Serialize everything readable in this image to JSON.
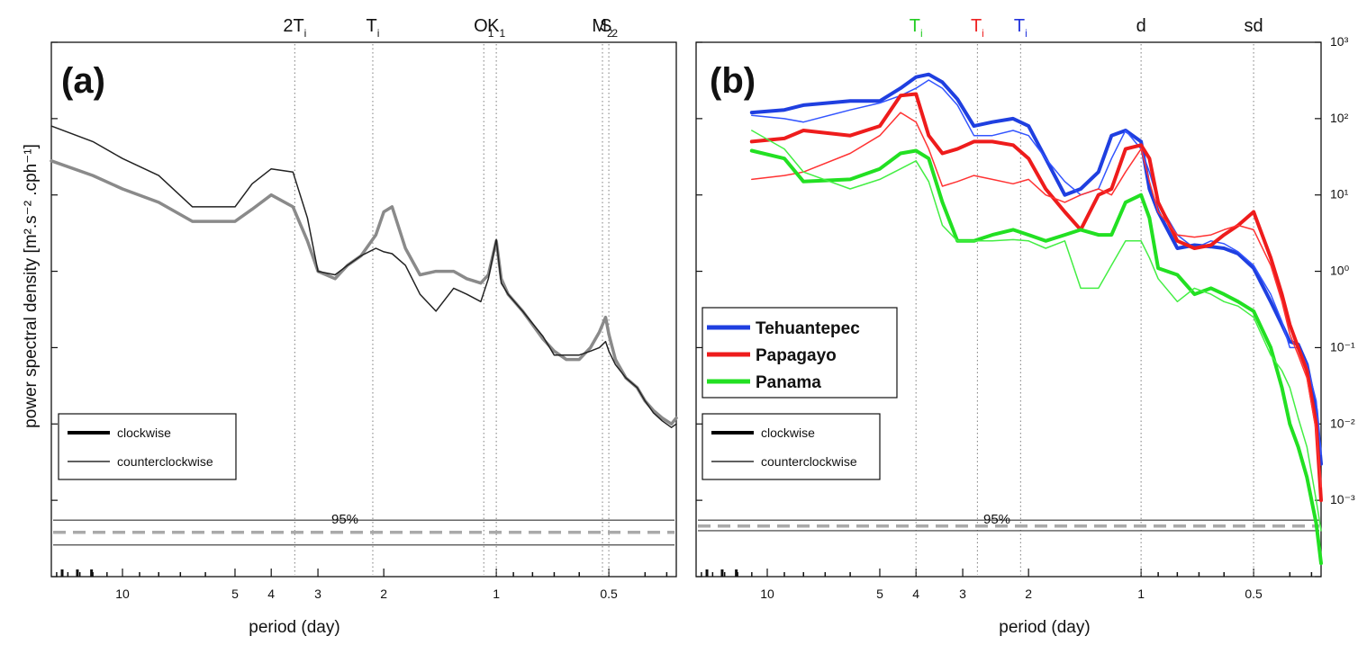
{
  "chart_data": [
    {
      "panel": "(a)",
      "type": "line",
      "xscale": "log",
      "yscale": "log",
      "xlim": [
        15.5,
        0.33
      ],
      "ylim": [
        0.0001,
        1000
      ],
      "xlabel": "period (day)",
      "ylabel": "power spectral density [m².s⁻² .cph⁻¹]",
      "x_ticks": [
        10,
        5,
        4,
        3,
        2,
        1,
        0.5
      ],
      "x_ticklabels": [
        "10",
        "5",
        "4",
        "3",
        "2",
        "1",
        "0.5"
      ],
      "top_markers": [
        {
          "label": "2T",
          "sub": "i",
          "period": 3.46
        },
        {
          "label": "T",
          "sub": "i",
          "period": 2.14
        },
        {
          "label": "O",
          "sub": "1",
          "period": 1.08
        },
        {
          "label": "K",
          "sub": "1",
          "period": 1.0
        },
        {
          "label": "M",
          "sub": "2",
          "period": 0.52
        },
        {
          "label": "S",
          "sub": "2",
          "period": 0.5
        }
      ],
      "series": [
        {
          "role": "clockwise",
          "color": "#8a8a8a",
          "width": 3.5,
          "x": [
            15.5,
            12,
            10,
            8,
            6.5,
            5,
            4.5,
            4,
            3.5,
            3.2,
            3.0,
            2.7,
            2.5,
            2.3,
            2.1,
            2.0,
            1.9,
            1.75,
            1.6,
            1.45,
            1.3,
            1.2,
            1.1,
            1.05,
            1.0,
            0.97,
            0.93,
            0.85,
            0.75,
            0.7,
            0.65,
            0.6,
            0.56,
            0.53,
            0.51,
            0.5,
            0.48,
            0.45,
            0.42,
            0.4,
            0.38,
            0.36,
            0.34,
            0.33
          ],
          "y": [
            28,
            18,
            12,
            8,
            4.5,
            4.5,
            6.5,
            10,
            7,
            2.5,
            1.0,
            0.8,
            1.2,
            1.6,
            3,
            6,
            7,
            2,
            0.9,
            1.0,
            1.0,
            0.8,
            0.7,
            0.9,
            2.5,
            0.8,
            0.5,
            0.3,
            0.13,
            0.09,
            0.07,
            0.07,
            0.1,
            0.16,
            0.25,
            0.15,
            0.07,
            0.04,
            0.03,
            0.02,
            0.015,
            0.012,
            0.01,
            0.012
          ]
        },
        {
          "role": "counterclockwise",
          "color": "#222222",
          "width": 1.5,
          "x": [
            15.5,
            12,
            10,
            8,
            6.5,
            5,
            4.5,
            4,
            3.5,
            3.2,
            3.0,
            2.7,
            2.5,
            2.3,
            2.1,
            2.0,
            1.9,
            1.75,
            1.6,
            1.45,
            1.3,
            1.2,
            1.1,
            1.05,
            1.0,
            0.97,
            0.93,
            0.85,
            0.75,
            0.7,
            0.65,
            0.6,
            0.56,
            0.53,
            0.51,
            0.5,
            0.48,
            0.45,
            0.42,
            0.4,
            0.38,
            0.36,
            0.34,
            0.33
          ],
          "y": [
            80,
            50,
            30,
            18,
            7,
            7,
            14,
            22,
            20,
            5,
            1.0,
            0.9,
            1.2,
            1.6,
            2.0,
            1.8,
            1.7,
            1.2,
            0.5,
            0.3,
            0.6,
            0.5,
            0.4,
            0.8,
            2.6,
            0.7,
            0.5,
            0.3,
            0.14,
            0.08,
            0.08,
            0.08,
            0.09,
            0.1,
            0.12,
            0.09,
            0.06,
            0.04,
            0.03,
            0.02,
            0.014,
            0.011,
            0.009,
            0.01
          ]
        }
      ],
      "confidence": {
        "label": "95%",
        "upper": 0.00055,
        "lower": 0.00026,
        "centre": 0.00038
      },
      "legend": {
        "position": "lower-left",
        "entries": [
          {
            "label": "clockwise",
            "width": 4
          },
          {
            "label": "counterclockwise",
            "width": 1.2
          }
        ]
      },
      "color": "#222222"
    },
    {
      "panel": "(b)",
      "type": "line",
      "xscale": "log",
      "yscale": "log",
      "xlim": [
        15.5,
        0.33
      ],
      "ylim": [
        0.0001,
        1000
      ],
      "xlabel": "period (day)",
      "x_ticks": [
        10,
        5,
        4,
        3,
        2,
        1,
        0.5
      ],
      "x_ticklabels": [
        "10",
        "5",
        "4",
        "3",
        "2",
        "1",
        "0.5"
      ],
      "y_ticks": [
        "10^3",
        "10^2",
        "10^1",
        "10^0",
        "10^-1",
        "10^-2",
        "10^-3"
      ],
      "top_markers": [
        {
          "label": "T",
          "sub": "i",
          "period": 4.0,
          "color": "#22cc22"
        },
        {
          "label": "T",
          "sub": "i",
          "period": 2.74,
          "color": "#ee2222"
        },
        {
          "label": "T",
          "sub": "i",
          "period": 2.1,
          "color": "#2233dd"
        },
        {
          "label": "d",
          "sub": "",
          "period": 1.0,
          "color": "#111111"
        },
        {
          "label": "sd",
          "sub": "",
          "period": 0.5,
          "color": "#111111"
        }
      ],
      "series": [
        {
          "name": "Tehuantepec",
          "role": "clockwise",
          "color": "#1f3fe0",
          "width": 4,
          "x": [
            11,
            9,
            8,
            6,
            5,
            4.4,
            4,
            3.7,
            3.4,
            3.1,
            2.8,
            2.5,
            2.2,
            2.0,
            1.8,
            1.6,
            1.45,
            1.3,
            1.2,
            1.1,
            1.0,
            0.95,
            0.9,
            0.8,
            0.72,
            0.65,
            0.6,
            0.55,
            0.5,
            0.45,
            0.42,
            0.4,
            0.38,
            0.36,
            0.34,
            0.33
          ],
          "y": [
            120,
            130,
            150,
            170,
            170,
            250,
            350,
            380,
            300,
            180,
            80,
            90,
            100,
            80,
            30,
            10,
            12,
            20,
            60,
            70,
            50,
            12,
            6,
            2.0,
            2.2,
            2.1,
            2.0,
            1.7,
            1.1,
            0.4,
            0.2,
            0.12,
            0.11,
            0.06,
            0.015,
            0.003
          ]
        },
        {
          "name": "Tehuantepec",
          "role": "counterclockwise",
          "color": "#3355ff",
          "width": 1.5,
          "x": [
            11,
            9,
            8,
            6,
            5,
            4.4,
            4,
            3.7,
            3.4,
            3.1,
            2.8,
            2.5,
            2.2,
            2.0,
            1.8,
            1.6,
            1.45,
            1.3,
            1.2,
            1.1,
            1.0,
            0.95,
            0.9,
            0.8,
            0.72,
            0.65,
            0.6,
            0.55,
            0.5,
            0.45,
            0.42,
            0.4,
            0.38,
            0.36,
            0.34,
            0.33
          ],
          "y": [
            110,
            100,
            90,
            130,
            160,
            200,
            250,
            320,
            250,
            150,
            60,
            60,
            70,
            60,
            30,
            15,
            10,
            12,
            30,
            70,
            40,
            20,
            8,
            3,
            2,
            2.5,
            2.3,
            1.8,
            1.2,
            0.5,
            0.22,
            0.1,
            0.1,
            0.06,
            0.02,
            0.004
          ]
        },
        {
          "name": "Papagayo",
          "role": "clockwise",
          "color": "#ee1c1c",
          "width": 4,
          "x": [
            11,
            9,
            8,
            6,
            5,
            4.4,
            4,
            3.7,
            3.4,
            3.1,
            2.8,
            2.5,
            2.2,
            2.0,
            1.8,
            1.6,
            1.45,
            1.3,
            1.2,
            1.1,
            1.0,
            0.95,
            0.9,
            0.8,
            0.72,
            0.65,
            0.6,
            0.55,
            0.5,
            0.45,
            0.42,
            0.4,
            0.38,
            0.36,
            0.34,
            0.33
          ],
          "y": [
            50,
            55,
            70,
            60,
            80,
            200,
            210,
            60,
            35,
            40,
            50,
            50,
            45,
            30,
            12,
            6,
            3.5,
            10,
            12,
            40,
            45,
            30,
            8,
            2.5,
            2,
            2.2,
            3,
            4,
            6,
            1.5,
            0.5,
            0.2,
            0.1,
            0.05,
            0.01,
            0.001
          ]
        },
        {
          "name": "Papagayo",
          "role": "counterclockwise",
          "color": "#ff3333",
          "width": 1.5,
          "x": [
            11,
            9,
            8,
            6,
            5,
            4.4,
            4,
            3.7,
            3.4,
            3.1,
            2.8,
            2.5,
            2.2,
            2.0,
            1.8,
            1.6,
            1.45,
            1.3,
            1.2,
            1.1,
            1.0,
            0.95,
            0.9,
            0.8,
            0.72,
            0.65,
            0.6,
            0.55,
            0.5,
            0.45,
            0.42,
            0.4,
            0.38,
            0.36,
            0.34,
            0.33
          ],
          "y": [
            16,
            18,
            20,
            35,
            60,
            120,
            90,
            40,
            13,
            15,
            18,
            16,
            14,
            16,
            10,
            8,
            10,
            12,
            10,
            20,
            40,
            15,
            6,
            3,
            2.8,
            3,
            3.5,
            4,
            3.5,
            1.2,
            0.4,
            0.15,
            0.08,
            0.04,
            0.008,
            0.0015
          ]
        },
        {
          "name": "Panama",
          "role": "clockwise",
          "color": "#22e022",
          "width": 4,
          "x": [
            11,
            9,
            8,
            6,
            5,
            4.4,
            4,
            3.7,
            3.4,
            3.1,
            2.8,
            2.5,
            2.2,
            2.0,
            1.8,
            1.6,
            1.45,
            1.3,
            1.2,
            1.1,
            1.0,
            0.95,
            0.9,
            0.8,
            0.72,
            0.65,
            0.6,
            0.55,
            0.5,
            0.45,
            0.42,
            0.4,
            0.38,
            0.36,
            0.34,
            0.33
          ],
          "y": [
            38,
            30,
            15,
            16,
            22,
            35,
            38,
            30,
            8,
            2.5,
            2.5,
            3,
            3.5,
            3,
            2.5,
            3,
            3.5,
            3,
            3,
            8,
            10,
            5,
            1.1,
            0.9,
            0.5,
            0.6,
            0.5,
            0.4,
            0.3,
            0.1,
            0.03,
            0.01,
            0.005,
            0.002,
            0.0005,
            0.00015
          ]
        },
        {
          "name": "Panama",
          "role": "counterclockwise",
          "color": "#44ee44",
          "width": 1.5,
          "x": [
            11,
            9,
            8,
            6,
            5,
            4.4,
            4,
            3.7,
            3.4,
            3.1,
            2.8,
            2.5,
            2.2,
            2.0,
            1.8,
            1.6,
            1.45,
            1.3,
            1.2,
            1.1,
            1.0,
            0.95,
            0.9,
            0.8,
            0.72,
            0.65,
            0.6,
            0.55,
            0.5,
            0.45,
            0.42,
            0.4,
            0.38,
            0.36,
            0.34,
            0.33
          ],
          "y": [
            70,
            40,
            20,
            12,
            16,
            22,
            28,
            15,
            4,
            2.5,
            2.5,
            2.5,
            2.6,
            2.5,
            2,
            2.5,
            0.6,
            0.6,
            1.2,
            2.5,
            2.5,
            1.5,
            0.8,
            0.4,
            0.6,
            0.5,
            0.4,
            0.35,
            0.25,
            0.08,
            0.05,
            0.03,
            0.012,
            0.005,
            0.001,
            0.0004
          ]
        }
      ],
      "confidence": {
        "label": "95%",
        "upper": 0.00055,
        "lower": 0.0004,
        "centre": 0.00046
      },
      "legend_colors": {
        "position": "middle-left",
        "entries": [
          {
            "label": "Tehuantepec",
            "color": "#1f3fe0"
          },
          {
            "label": "Papagayo",
            "color": "#ee1c1c"
          },
          {
            "label": "Panama",
            "color": "#22e022"
          }
        ]
      },
      "legend": {
        "position": "lower-left",
        "entries": [
          {
            "label": "clockwise",
            "width": 4
          },
          {
            "label": "counterclockwise",
            "width": 1.2
          }
        ]
      },
      "color": "#111111"
    }
  ],
  "colors": {
    "axis": "#111111",
    "grid": "#9a9a9a",
    "ci_gray": "#aaaaaa",
    "ci_dark": "#333333"
  }
}
